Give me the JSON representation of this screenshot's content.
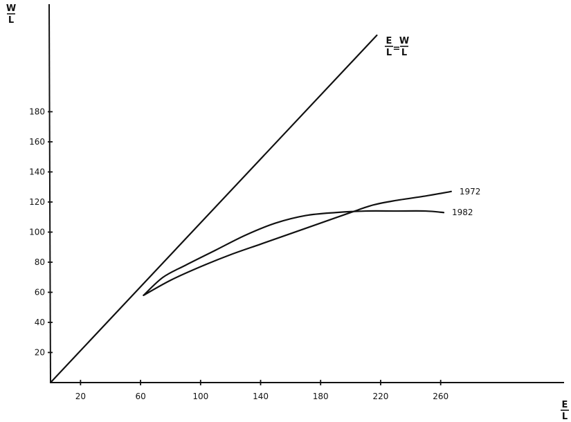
{
  "chart_data": {
    "type": "line",
    "xlim": [
      0,
      340
    ],
    "ylim": [
      0,
      250
    ],
    "x_ticks": [
      20,
      60,
      100,
      140,
      180,
      220,
      260
    ],
    "y_ticks": [
      20,
      40,
      60,
      80,
      100,
      120,
      140,
      160,
      180
    ],
    "x_tick_labels": [
      "20",
      "60",
      "100",
      "140",
      "180",
      "220",
      "260"
    ],
    "y_tick_labels": [
      "20",
      "40",
      "60",
      "80",
      "100",
      "120",
      "140",
      "160",
      "180"
    ],
    "y_axis_label": {
      "numerator": "W",
      "denominator": "L"
    },
    "x_axis_label": {
      "numerator": "E",
      "denominator": "L"
    },
    "reference_line": {
      "label_left": {
        "numerator": "E",
        "denominator": "L"
      },
      "equals": "=",
      "label_right": {
        "numerator": "W",
        "denominator": "L"
      },
      "x": [
        0,
        217
      ],
      "y": [
        0,
        217
      ]
    },
    "series": [
      {
        "name": "1972",
        "x": [
          62,
          80,
          100,
          120,
          140,
          160,
          180,
          200,
          215,
          230,
          250,
          267
        ],
        "y": [
          58,
          68,
          77,
          85,
          92,
          99,
          106,
          113,
          118,
          121,
          124,
          127
        ]
      },
      {
        "name": "1982",
        "x": [
          62,
          75,
          90,
          110,
          130,
          150,
          170,
          190,
          210,
          230,
          250,
          262
        ],
        "y": [
          58,
          70,
          78,
          88,
          98,
          106,
          111,
          113,
          114,
          114,
          114,
          113
        ]
      }
    ],
    "grid": false
  }
}
